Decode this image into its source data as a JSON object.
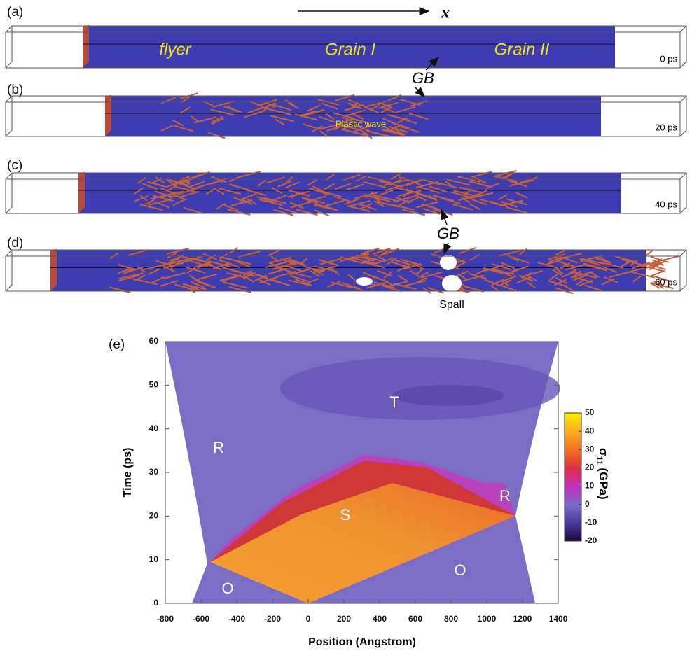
{
  "panels": [
    {
      "label": "(a)",
      "time": "0 ps",
      "texts": [
        "flyer",
        "Grain I",
        "Grain II"
      ]
    },
    {
      "label": "(b)",
      "time": "20 ps",
      "texts": [
        "Plastic wave"
      ]
    },
    {
      "label": "(c)",
      "time": "40 ps"
    },
    {
      "label": "(d)",
      "time": "60 ps",
      "texts": [
        "Spall"
      ]
    }
  ],
  "annotations": {
    "direction": "x",
    "gb_upper": "GB",
    "gb_lower": "GB"
  },
  "chart_data": {
    "type": "heatmap",
    "panel_label": "(e)",
    "x_label": "Position (Angstrom)",
    "y_label": "Time (ps)",
    "xlim": [
      -800,
      1400
    ],
    "xticks": [
      -800,
      -600,
      -400,
      -200,
      0,
      200,
      400,
      600,
      800,
      1000,
      1200,
      1400
    ],
    "ylim": [
      0,
      60
    ],
    "yticks": [
      0,
      10,
      20,
      30,
      40,
      50,
      60
    ],
    "colorbar": {
      "symbol": "σ",
      "subscript": "11",
      "unit": "(GPa)",
      "lim": [
        -20,
        50
      ],
      "ticks": [
        -20,
        -10,
        0,
        10,
        20,
        30,
        40,
        50
      ]
    },
    "region_labels": [
      "T",
      "R",
      "R",
      "S",
      "O",
      "O"
    ]
  }
}
